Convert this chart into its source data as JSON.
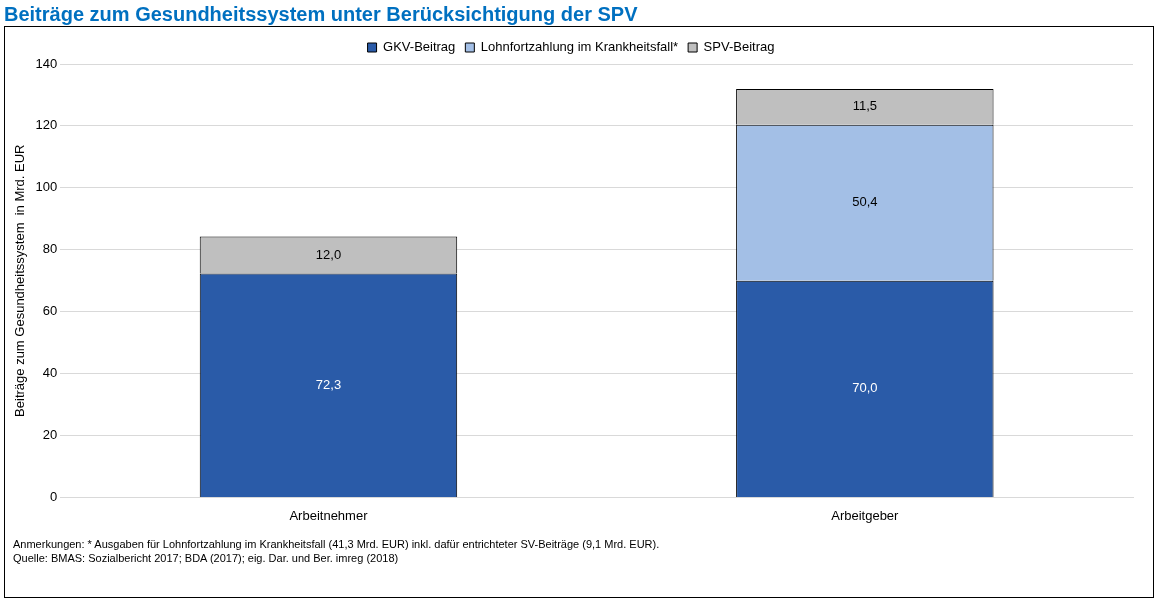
{
  "chart_data": {
    "type": "bar",
    "title": "Beiträge zum Gesundheitssystem unter Berücksichtigung der SPV",
    "ylabel": "Beiträge zum Gesundheitssystem  in Mrd. EUR",
    "categories": [
      "Arbeitnehmer",
      "Arbeitgeber"
    ],
    "stacked": true,
    "series": [
      {
        "name": "GKV-Beitrag",
        "color": "#2a5ba8",
        "values": [
          72.3,
          70.0
        ],
        "value_labels": [
          "72,3",
          "70,0"
        ]
      },
      {
        "name": "Lohnfortzahlung im Krankheitsfall*",
        "color": "#a3bfe6",
        "values": [
          null,
          50.4
        ],
        "value_labels": [
          null,
          "50,4"
        ]
      },
      {
        "name": "SPV-Beitrag",
        "color": "#bfbfbf",
        "values": [
          12.0,
          11.5
        ],
        "value_labels": [
          "12,0",
          "11,5"
        ]
      }
    ],
    "ylim": [
      0,
      140
    ],
    "yticks": [
      0,
      20,
      40,
      60,
      80,
      100,
      120,
      140
    ],
    "grid": "y",
    "legend": "top",
    "annotations": [
      "Anmerkungen: * Ausgaben für Lohnfortzahlung im Krankheitsfall (41,3 Mrd. EUR) inkl. dafür entrichteter SV-Beiträge (9,1 Mrd. EUR).",
      "Quelle: BMAS: Sozialbericht 2017; BDA (2017); eig. Dar. und Ber. imreg (2018)"
    ]
  }
}
